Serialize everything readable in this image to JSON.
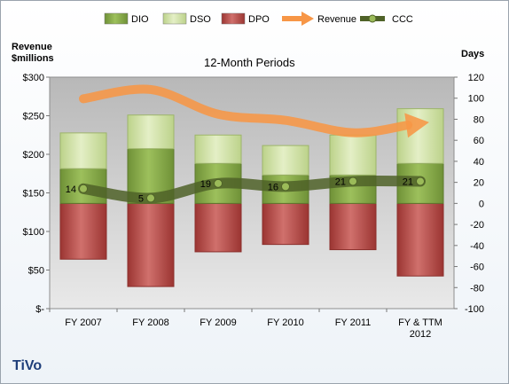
{
  "company": "TiVo",
  "chart_data": {
    "type": "bar",
    "subtitle": "12-Month Periods",
    "ylabel_left": [
      "Revenue",
      "$millions"
    ],
    "ylabel_right": "Days",
    "categories": [
      [
        "FY 2007"
      ],
      [
        "FY 2008"
      ],
      [
        "FY 2009"
      ],
      [
        "FY 2010"
      ],
      [
        "FY 2011"
      ],
      [
        "FY & TTM",
        "2012"
      ]
    ],
    "y_left": {
      "min": 0,
      "max": 300,
      "ticks": [
        0,
        50,
        100,
        150,
        200,
        250,
        300
      ],
      "tick_labels": [
        "$-",
        "$50",
        "$100",
        "$150",
        "$200",
        "$250",
        "$300"
      ]
    },
    "y_right": {
      "min": -100,
      "max": 120,
      "ticks": [
        -100,
        -80,
        -60,
        -40,
        -20,
        0,
        20,
        40,
        60,
        80,
        100,
        120
      ],
      "tick_labels": [
        "-100",
        "-80",
        "-60",
        "-40",
        "-20",
        "0",
        "20",
        "40",
        "60",
        "80",
        "100",
        "120"
      ]
    },
    "series": [
      {
        "name": "DIO",
        "axis": "right",
        "values": [
          33,
          52,
          38,
          27,
          27,
          38
        ],
        "color": "#7ea043"
      },
      {
        "name": "DSO",
        "axis": "right",
        "values": [
          34,
          32,
          27,
          28,
          38,
          52
        ],
        "color": "#cfe0a4"
      },
      {
        "name": "DPO",
        "axis": "right",
        "values": [
          -53,
          -79,
          -46,
          -39,
          -44,
          -69
        ],
        "color": "#c0504d"
      },
      {
        "name": "Revenue",
        "axis": "left",
        "values": [
          272,
          284,
          252,
          244,
          228,
          240
        ],
        "color": "#f79646"
      },
      {
        "name": "CCC",
        "axis": "right",
        "values": [
          14,
          5,
          19,
          16,
          21,
          21
        ],
        "labels": [
          "14",
          "5",
          "19",
          "16",
          "21",
          "21"
        ],
        "color": "#4f6228"
      }
    ],
    "legend_position": "top",
    "grid": false
  }
}
